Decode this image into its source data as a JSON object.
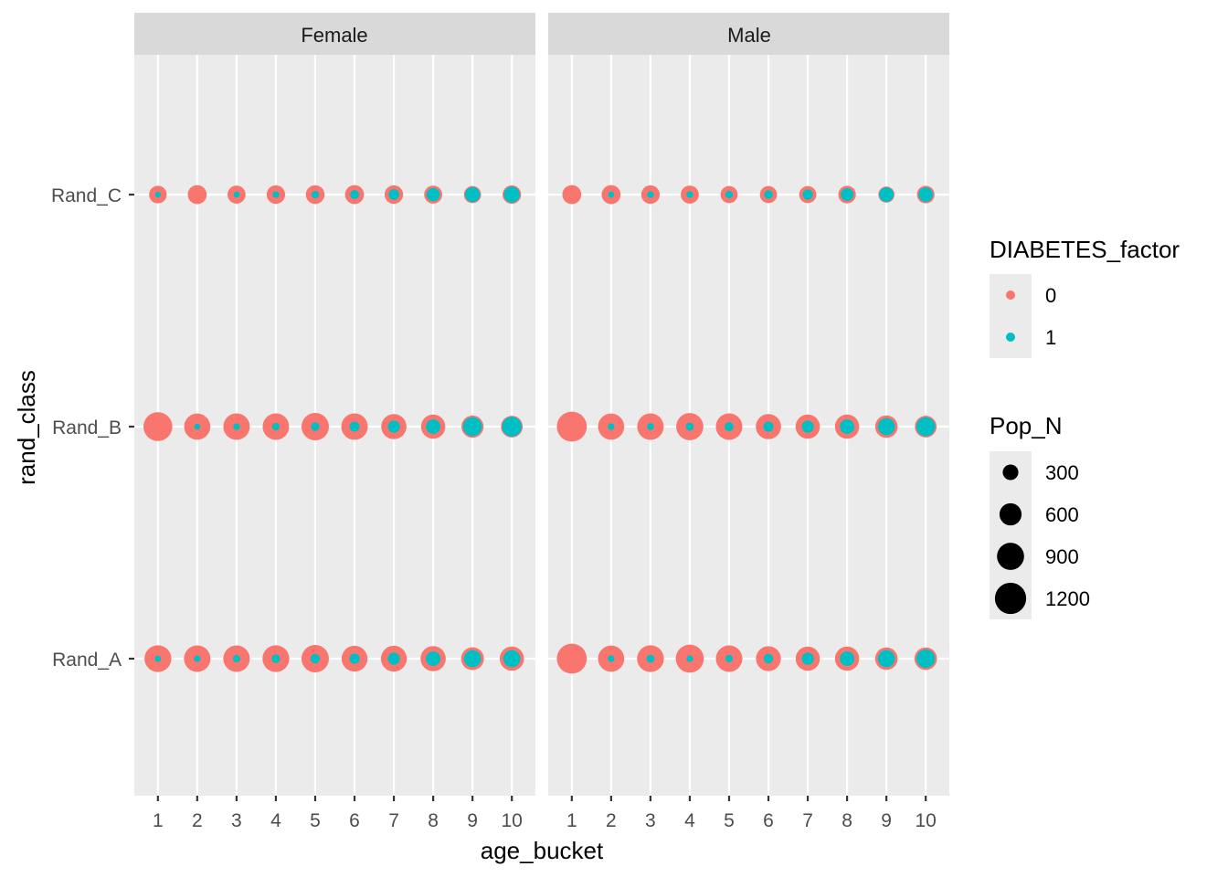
{
  "chart_data": {
    "type": "scatter",
    "facet_variable": "sex",
    "facets": [
      "Female",
      "Male"
    ],
    "xlabel": "age_bucket",
    "ylabel": "rand_class",
    "x_categories": [
      "1",
      "2",
      "3",
      "4",
      "5",
      "6",
      "7",
      "8",
      "9",
      "10"
    ],
    "y_categories": [
      "Rand_A",
      "Rand_B",
      "Rand_C"
    ],
    "grid": true,
    "legend_position": "right",
    "color_legend": {
      "title": "DIABETES_factor",
      "entries": [
        {
          "label": "0",
          "color": "#F8766D"
        },
        {
          "label": "1",
          "color": "#00BFC4"
        }
      ]
    },
    "size_legend": {
      "title": "Pop_N",
      "breaks": [
        300,
        600,
        900,
        1200
      ],
      "labels": [
        "300",
        "600",
        "900",
        "1200"
      ]
    },
    "size_range_data": [
      0,
      1400
    ],
    "series": [
      {
        "name": "0",
        "facet": "Female",
        "points": {
          "Rand_C": [
            380,
            440,
            400,
            420,
            430,
            440,
            420,
            400,
            360,
            420
          ],
          "Rand_B": [
            1020,
            840,
            860,
            860,
            920,
            860,
            780,
            720,
            600,
            580
          ],
          "Rand_A": [
            880,
            860,
            860,
            880,
            920,
            820,
            820,
            780,
            640,
            720
          ]
        }
      },
      {
        "name": "1",
        "facet": "Female",
        "points": {
          "Rand_C": [
            40,
            0,
            45,
            55,
            70,
            100,
            140,
            220,
            280,
            320
          ],
          "Rand_B": [
            0,
            45,
            55,
            70,
            90,
            120,
            180,
            260,
            440,
            480
          ],
          "Rand_A": [
            50,
            55,
            70,
            90,
            110,
            130,
            180,
            260,
            360,
            360
          ]
        }
      },
      {
        "name": "0",
        "facet": "Male",
        "points": {
          "Rand_C": [
            440,
            440,
            420,
            400,
            360,
            360,
            360,
            380,
            320,
            380
          ],
          "Rand_B": [
            1100,
            840,
            860,
            900,
            860,
            780,
            720,
            720,
            620,
            580
          ],
          "Rand_A": [
            1100,
            840,
            880,
            960,
            860,
            760,
            720,
            720,
            620,
            620
          ]
        }
      },
      {
        "name": "1",
        "facet": "Male",
        "points": {
          "Rand_C": [
            0,
            45,
            55,
            55,
            70,
            90,
            130,
            200,
            260,
            260
          ],
          "Rand_B": [
            0,
            55,
            60,
            80,
            100,
            130,
            180,
            260,
            360,
            440
          ],
          "Rand_A": [
            0,
            55,
            80,
            55,
            70,
            110,
            180,
            260,
            360,
            420
          ]
        }
      }
    ]
  }
}
